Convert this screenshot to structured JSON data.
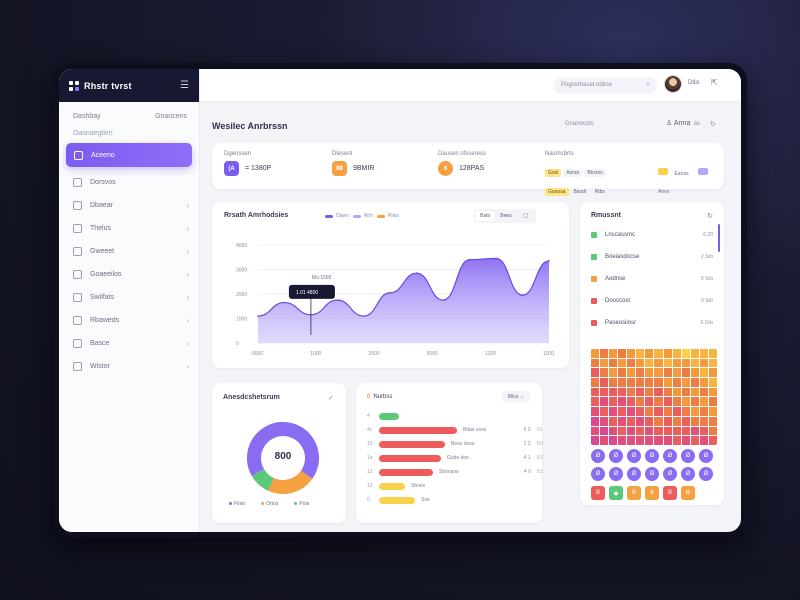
{
  "colors": {
    "accent": "#7b5cf0",
    "accent_light": "#b6a3fb",
    "orange": "#f5a142",
    "green": "#5cc97a",
    "red": "#ee5b5b",
    "yellow": "#f8d24a",
    "sidebar_dark": "#171933"
  },
  "brand": {
    "name": "Rhstr tvrst",
    "menu_icon": "hamburger-icon"
  },
  "sidebar": {
    "top_left": "Dashbay",
    "top_right": "Gnancens",
    "section_label": "Oasnaegtien",
    "items": [
      {
        "label": "Aceeno",
        "icon": "dashboard-icon",
        "active": true
      },
      {
        "label": "Dorsvos",
        "icon": "chat-icon"
      },
      {
        "label": "Dbaear",
        "icon": "layers-icon"
      },
      {
        "label": "Thelus",
        "icon": "folder-icon"
      },
      {
        "label": "Gweeet",
        "icon": "box-icon"
      },
      {
        "label": "Goaeeilos",
        "icon": "cog-icon"
      },
      {
        "label": "Swilfats",
        "icon": "chart-icon"
      },
      {
        "label": "Rbaweds",
        "icon": "tag-icon"
      },
      {
        "label": "Basce",
        "icon": "calendar-icon"
      },
      {
        "label": "Wistor",
        "icon": "user-icon"
      }
    ]
  },
  "topbar": {
    "search_placeholder": "Pogusthasat odkse",
    "user_label": "Dtlis",
    "exit_icon": "logout-icon"
  },
  "page": {
    "title": "Wesilec Anrbrssn",
    "crumb": "Gnanncols",
    "user": "Amra",
    "user_sub": "as"
  },
  "stats": [
    {
      "label": "Dgenssen",
      "badge": "(A",
      "value": "= 1380P"
    },
    {
      "label": "Dlesent",
      "badge": "88",
      "value": "9BMIR"
    },
    {
      "label": "Dausen ofsseress",
      "badge": "6",
      "value": "128PAS"
    }
  ],
  "stats_extra": {
    "label": "Nasmsbrts",
    "pills": [
      "Gosl",
      "Anrso",
      "Btrcies",
      "Ganosa",
      "Bsodr",
      "Rtbs"
    ],
    "tags": [
      "Eanas",
      "Anes"
    ]
  },
  "chart": {
    "title": "Rrsath Amrhodsies",
    "legend": [
      "Dawn",
      "Wrh",
      "Rilos"
    ],
    "segments": [
      "Bato",
      "Bees"
    ],
    "calendar_icon": "calendar-icon",
    "tooltip_title": "Mu 1505",
    "tooltip_value": "1.01 4800"
  },
  "chart_data": {
    "type": "area",
    "title": "Rrsath Amrhodsies",
    "x": [
      "0:00",
      "1:00",
      "2:00",
      "3:00",
      "4:00",
      "5:00",
      "6:00",
      "7:00",
      "8:00",
      "9:00",
      "10:00",
      "11:00"
    ],
    "xticks": [
      "0000",
      "1000",
      "2000",
      "3000",
      "1200",
      "1000"
    ],
    "yticks": [
      "0",
      "1000",
      "2000",
      "3000",
      "4000"
    ],
    "ylim": [
      0,
      4000
    ],
    "series": [
      {
        "name": "Dawn",
        "values": [
          1100,
          1650,
          1150,
          1750,
          1100,
          2050,
          2850,
          1750,
          3400,
          3450,
          1950,
          3350
        ]
      }
    ],
    "grid": true
  },
  "right_panel": {
    "title": "Rmussnt",
    "items": [
      {
        "label": "Lnscassmc",
        "value": "6 20",
        "color": "#5cc97a"
      },
      {
        "label": "Boeiasdocse",
        "value": "2 Srb",
        "color": "#5cc97a"
      },
      {
        "label": "Aodnse",
        "value": "5 Srb",
        "color": "#f5a142"
      },
      {
        "label": "Dooscost",
        "value": "0 Srb",
        "color": "#ee5b5b"
      },
      {
        "label": "Paseosiinsr",
        "value": "0 Orb",
        "color": "#ee5b5b"
      }
    ],
    "emoji_row1": [
      "Ø",
      "Ø",
      "Ø",
      "Ø",
      "Ø",
      "Ø",
      "Ø"
    ],
    "emoji_row2": [
      "Ø",
      "Ø",
      "Ø",
      "Ø",
      "Ø",
      "Ø",
      "Ø"
    ],
    "emoji_row3": [
      "B",
      "◆",
      "B",
      "8",
      "B",
      "B",
      ""
    ]
  },
  "donut": {
    "title": "Anesdcshetsrum",
    "center_value": "800",
    "legend": [
      "Finto",
      "Ortos",
      "Pola"
    ],
    "segments": [
      {
        "name": "Finto",
        "value": 68,
        "color": "#8a6cf3"
      },
      {
        "name": "Ortos",
        "value": 22,
        "color": "#f5a142"
      },
      {
        "name": "Pola",
        "value": 10,
        "color": "#5cc97a"
      }
    ]
  },
  "table": {
    "title_prefix": "0",
    "title": "Nurbss",
    "filter_label": "Bllos",
    "rows": [
      {
        "idx": "4",
        "bar_color": "#5cc97a",
        "bar_width": 20,
        "text": "",
        "num": "",
        "chips": []
      },
      {
        "idx": "4c",
        "bar_color": "#ee5b5b",
        "bar_width": 78,
        "text": "Bdas ooss",
        "num": "6 3",
        "act": "N1"
      },
      {
        "idx": "10",
        "bar_color": "#ee5b5b",
        "bar_width": 66,
        "text": "Bese doss",
        "num": "2 2",
        "act": "N3"
      },
      {
        "idx": "1a",
        "bar_color": "#ee5b5b",
        "bar_width": 62,
        "text": "Gobe dos",
        "num": "4 1",
        "act": "R3"
      },
      {
        "idx": "12",
        "bar_color": "#ee5b5b",
        "bar_width": 54,
        "text": "Sbonass",
        "num": "4 0",
        "act": "B3"
      },
      {
        "idx": "13",
        "bar_color": "#f8d24a",
        "bar_width": 26,
        "text": "Sboes",
        "num": "",
        "act": ""
      },
      {
        "idx": "0",
        "bar_color": "#f8d24a",
        "bar_width": 36,
        "text": "Sse",
        "num": "",
        "act": ""
      }
    ]
  }
}
